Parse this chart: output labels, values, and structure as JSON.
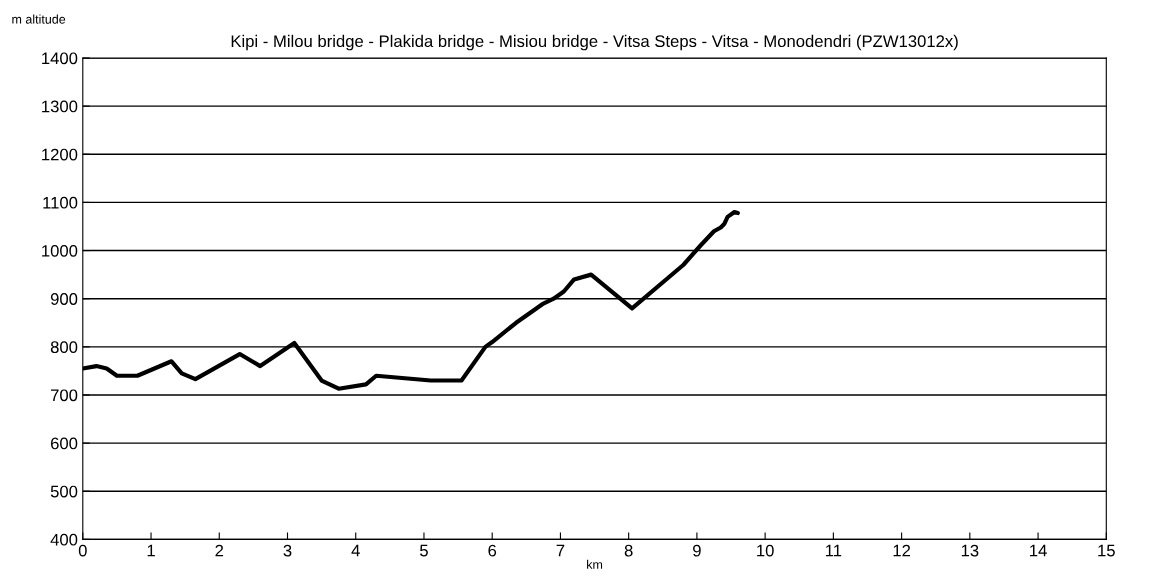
{
  "chart_data": {
    "type": "line",
    "title": "Kipi - Milou bridge - Plakida bridge - Misiou bridge - Vitsa Steps - Vitsa - Monodendri (PZW13012x)",
    "xlabel": "km",
    "ylabel": "m altitude",
    "x": [
      0,
      0.2,
      0.35,
      0.5,
      0.8,
      1.3,
      1.45,
      1.65,
      2.3,
      2.6,
      3.1,
      3.5,
      3.75,
      4.15,
      4.3,
      5.1,
      5.55,
      5.9,
      6.0,
      6.35,
      6.6,
      6.75,
      6.9,
      7.05,
      7.2,
      7.45,
      8.05,
      8.8,
      9.05,
      9.25,
      9.35,
      9.4,
      9.45,
      9.55,
      9.6
    ],
    "series": [
      {
        "color": "#000000",
        "values": [
          755,
          760,
          755,
          740,
          740,
          770,
          745,
          733,
          785,
          760,
          808,
          730,
          713,
          722,
          740,
          730,
          730,
          800,
          810,
          850,
          875,
          890,
          900,
          915,
          940,
          950,
          880,
          970,
          1010,
          1040,
          1048,
          1055,
          1070,
          1080,
          1078
        ]
      }
    ],
    "xlim": [
      0,
      15
    ],
    "ylim": [
      400,
      1400
    ],
    "xticks": [
      0,
      1,
      2,
      3,
      4,
      5,
      6,
      7,
      8,
      9,
      10,
      11,
      12,
      13,
      14,
      15
    ],
    "yticks": [
      400,
      500,
      600,
      700,
      800,
      900,
      1000,
      1100,
      1200,
      1300,
      1400
    ],
    "grid": "y",
    "legend": false,
    "marker": "none",
    "line_style": "solid"
  }
}
